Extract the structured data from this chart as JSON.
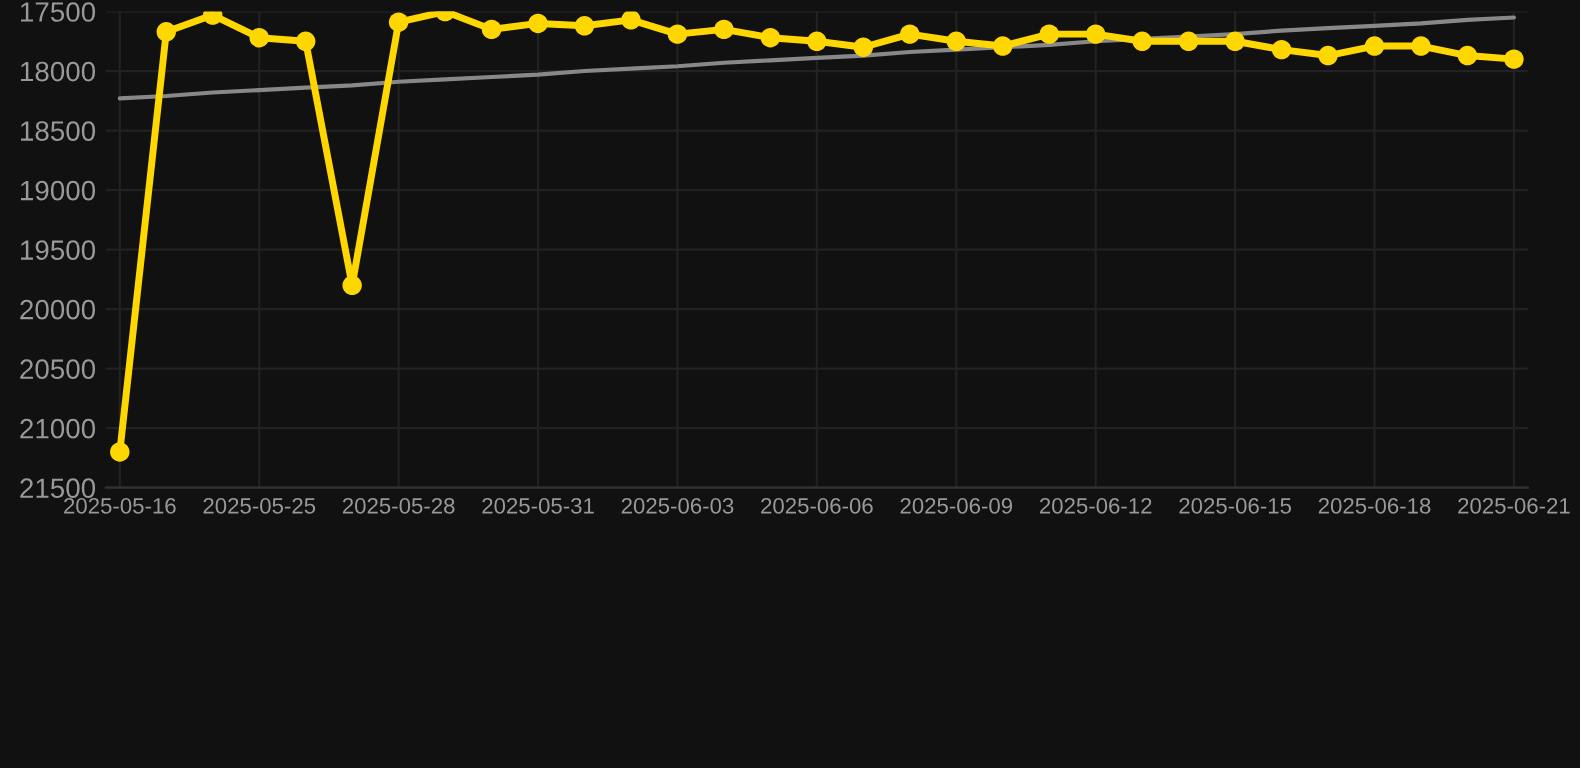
{
  "chart_data": {
    "type": "line",
    "categories": [
      "2025-05-16",
      null,
      null,
      "2025-05-25",
      null,
      null,
      "2025-05-28",
      null,
      null,
      "2025-05-31",
      null,
      null,
      "2025-06-03",
      null,
      null,
      "2025-06-06",
      null,
      null,
      "2025-06-09",
      null,
      null,
      "2025-06-12",
      null,
      null,
      "2025-06-15",
      null,
      null,
      "2025-06-18",
      null,
      null,
      "2025-06-21"
    ],
    "series": [
      {
        "color": "#ffd700",
        "marker": "circle",
        "values": [
          21200,
          17670,
          17530,
          17720,
          17750,
          19800,
          17590,
          17500,
          17650,
          17600,
          17620,
          17570,
          17690,
          17650,
          17720,
          17750,
          17800,
          17690,
          17750,
          17790,
          17690,
          17690,
          17750,
          17750,
          17750,
          17820,
          17870,
          17790,
          17790,
          17870,
          17900
        ]
      },
      {
        "color": "#888888",
        "marker": "none",
        "values": [
          18230,
          18210,
          18180,
          18160,
          18140,
          18120,
          18090,
          18070,
          18050,
          18030,
          18000,
          17980,
          17960,
          17930,
          17910,
          17890,
          17870,
          17840,
          17820,
          17800,
          17780,
          17750,
          17730,
          17710,
          17690,
          17660,
          17640,
          17620,
          17600,
          17570,
          17550
        ]
      }
    ],
    "ylim": [
      21500,
      17500
    ],
    "yticks": [
      17500,
      18000,
      18500,
      19000,
      19500,
      20000,
      20500,
      21000,
      21500
    ],
    "grid": true,
    "legend": false,
    "line_style": "solid"
  }
}
